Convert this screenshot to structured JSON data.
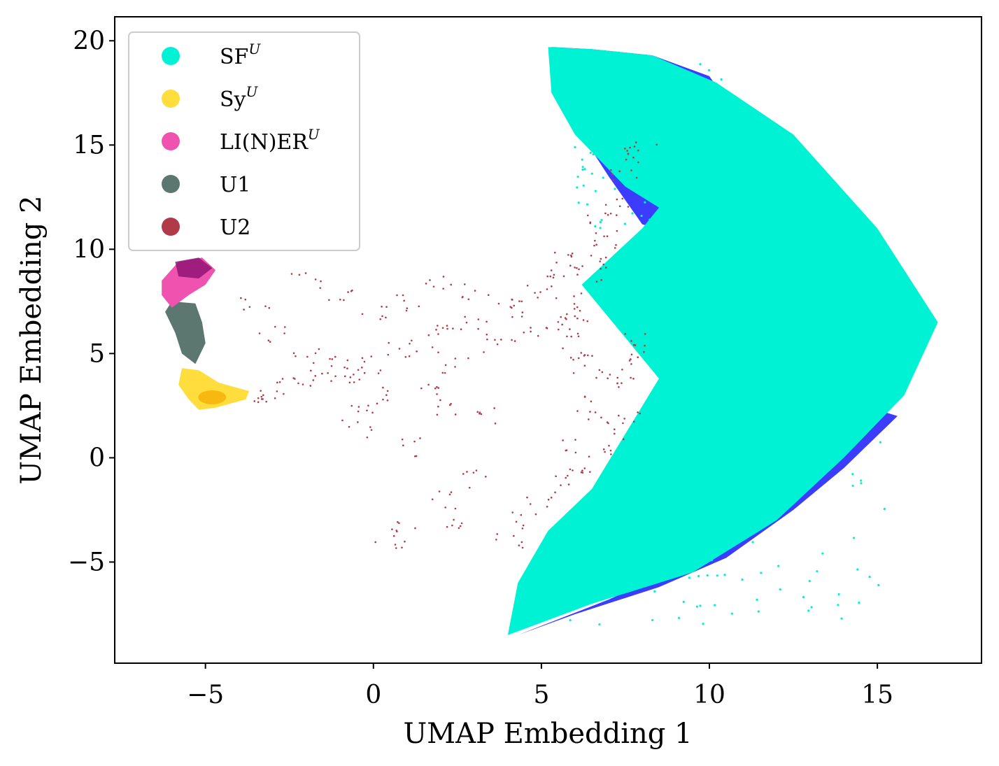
{
  "chart_data": {
    "type": "scatter",
    "xlabel": "UMAP Embedding 1",
    "ylabel": "UMAP Embedding 2",
    "xlim": [
      -7.7,
      18.1
    ],
    "ylim": [
      -9.85,
      21.15
    ],
    "xticks": [
      {
        "value": -5,
        "label": "−5"
      },
      {
        "value": 0,
        "label": "0"
      },
      {
        "value": 5,
        "label": "5"
      },
      {
        "value": 10,
        "label": "10"
      },
      {
        "value": 15,
        "label": "15"
      }
    ],
    "yticks": [
      {
        "value": -5,
        "label": "−5"
      },
      {
        "value": 0,
        "label": "0"
      },
      {
        "value": 5,
        "label": "5"
      },
      {
        "value": 10,
        "label": "10"
      },
      {
        "value": 15,
        "label": "15"
      },
      {
        "value": 20,
        "label": "20"
      }
    ],
    "legend_position": "top-left",
    "series": [
      {
        "name": "SF",
        "sup": "U",
        "color": "#00f2d4"
      },
      {
        "name": "Sy",
        "sup": "U",
        "color": "#ffdd3c"
      },
      {
        "name": "LI(N)ER",
        "sup": "U",
        "color": "#f052b0"
      },
      {
        "name": "U1",
        "sup": "",
        "color": "#5c7670"
      },
      {
        "name": "U2",
        "sup": "",
        "color": "#b03a48"
      }
    ],
    "overlay_color": "#1a1aff",
    "regions": {
      "SF_U": [
        [
          5.2,
          19.7
        ],
        [
          6.5,
          19.6
        ],
        [
          8.3,
          19.3
        ],
        [
          10.2,
          18.0
        ],
        [
          12.5,
          15.5
        ],
        [
          15.0,
          11.0
        ],
        [
          16.8,
          6.5
        ],
        [
          15.8,
          3.0
        ],
        [
          14.0,
          0.0
        ],
        [
          12.0,
          -3.0
        ],
        [
          9.5,
          -5.5
        ],
        [
          6.5,
          -7.0
        ],
        [
          4.0,
          -8.5
        ],
        [
          4.3,
          -6.0
        ],
        [
          5.2,
          -3.5
        ],
        [
          6.5,
          -1.5
        ],
        [
          8.5,
          3.8
        ],
        [
          6.2,
          8.3
        ],
        [
          8.0,
          11.0
        ],
        [
          8.5,
          12.0
        ],
        [
          7.5,
          13.0
        ],
        [
          6.0,
          15.5
        ],
        [
          5.3,
          17.5
        ]
      ],
      "blue_upper": [
        [
          5.3,
          19.7
        ],
        [
          6.5,
          19.6
        ],
        [
          8.3,
          19.3
        ],
        [
          10.0,
          18.3
        ],
        [
          11.0,
          16.0
        ],
        [
          10.0,
          13.0
        ],
        [
          8.9,
          10.8
        ],
        [
          8.0,
          11.2
        ],
        [
          7.0,
          13.5
        ],
        [
          6.0,
          16.0
        ],
        [
          5.6,
          17.5
        ]
      ],
      "blue_lower": [
        [
          15.6,
          2.0
        ],
        [
          14.0,
          -0.5
        ],
        [
          12.5,
          -2.5
        ],
        [
          10.5,
          -4.8
        ],
        [
          8.5,
          -6.2
        ],
        [
          6.0,
          -7.5
        ],
        [
          4.3,
          -8.5
        ],
        [
          7.0,
          -6.8
        ],
        [
          9.5,
          -5.0
        ],
        [
          11.5,
          -3.0
        ],
        [
          13.2,
          -0.3
        ],
        [
          14.8,
          2.4
        ]
      ],
      "U2_points": [
        [
          5.0,
          8.0
        ],
        [
          5.5,
          9.0
        ],
        [
          4.5,
          7.5
        ],
        [
          3.0,
          6.5
        ],
        [
          2.0,
          6.0
        ],
        [
          1.5,
          5.5
        ],
        [
          0.8,
          5.2
        ],
        [
          0.0,
          4.5
        ],
        [
          -0.5,
          4.2
        ],
        [
          -1.0,
          4.0
        ],
        [
          -1.8,
          3.8
        ],
        [
          -2.5,
          3.4
        ],
        [
          -3.0,
          3.0
        ],
        [
          -3.6,
          3.0
        ],
        [
          6.0,
          5.0
        ],
        [
          6.3,
          4.5
        ],
        [
          7.0,
          4.0
        ],
        [
          7.5,
          3.8
        ],
        [
          6.5,
          2.5
        ],
        [
          6.8,
          1.5
        ],
        [
          6.0,
          0.5
        ],
        [
          5.8,
          -1.0
        ],
        [
          5.0,
          -2.0
        ],
        [
          4.5,
          -3.0
        ],
        [
          3.0,
          -1.0
        ],
        [
          2.0,
          -2.0
        ],
        [
          1.0,
          -3.5
        ],
        [
          0.5,
          -3.9
        ],
        [
          -0.5,
          1.4
        ],
        [
          -1.0,
          4.5
        ],
        [
          -2.0,
          4.8
        ],
        [
          -3.0,
          6.0
        ],
        [
          -3.5,
          7.5
        ],
        [
          -2.0,
          8.5
        ],
        [
          -1.0,
          7.8
        ],
        [
          0.0,
          7.0
        ],
        [
          1.0,
          7.5
        ],
        [
          2.0,
          8.5
        ],
        [
          3.0,
          8.0
        ],
        [
          4.0,
          7.0
        ],
        [
          4.5,
          6.0
        ],
        [
          5.5,
          6.5
        ],
        [
          6.0,
          7.5
        ],
        [
          6.5,
          9.5
        ],
        [
          7.0,
          10.5
        ],
        [
          6.8,
          11.5
        ],
        [
          7.2,
          12.0
        ],
        [
          7.5,
          13.5
        ],
        [
          7.8,
          14.5
        ],
        [
          8.0,
          15.0
        ],
        [
          5.8,
          9.5
        ],
        [
          6.2,
          10.0
        ],
        [
          6.5,
          8.8
        ],
        [
          6.0,
          7.0
        ],
        [
          5.9,
          6.0
        ],
        [
          3.5,
          5.5
        ],
        [
          2.5,
          4.5
        ],
        [
          1.5,
          3.5
        ],
        [
          0.5,
          3.0
        ],
        [
          -0.3,
          2.5
        ],
        [
          7.8,
          5.5
        ],
        [
          8.0,
          4.8
        ],
        [
          7.5,
          2.0
        ],
        [
          7.0,
          0.5
        ],
        [
          6.2,
          -0.5
        ],
        [
          4.0,
          -4.0
        ],
        [
          2.5,
          -3.0
        ],
        [
          1.2,
          0.5
        ],
        [
          3.5,
          2.0
        ],
        [
          2.0,
          2.5
        ]
      ],
      "U1_blob": [
        [
          -6.0,
          7.5
        ],
        [
          -5.3,
          7.4
        ],
        [
          -5.1,
          6.5
        ],
        [
          -5.0,
          5.5
        ],
        [
          -5.3,
          4.5
        ],
        [
          -5.7,
          5.0
        ],
        [
          -5.9,
          6.0
        ],
        [
          -6.2,
          7.0
        ]
      ],
      "LINER_blob": [
        [
          -6.3,
          8.5
        ],
        [
          -5.8,
          9.4
        ],
        [
          -5.1,
          9.6
        ],
        [
          -4.7,
          9.0
        ],
        [
          -5.0,
          8.3
        ],
        [
          -5.5,
          7.8
        ],
        [
          -6.0,
          7.2
        ],
        [
          -6.3,
          7.8
        ]
      ],
      "LINER_dark": [
        [
          -5.9,
          9.4
        ],
        [
          -5.2,
          9.6
        ],
        [
          -4.8,
          9.1
        ],
        [
          -5.2,
          8.6
        ],
        [
          -5.8,
          8.7
        ]
      ],
      "Sy_blob": [
        [
          -5.7,
          4.3
        ],
        [
          -5.2,
          4.2
        ],
        [
          -4.6,
          3.6
        ],
        [
          -3.7,
          3.2
        ],
        [
          -3.8,
          2.8
        ],
        [
          -4.7,
          2.4
        ],
        [
          -5.2,
          2.3
        ],
        [
          -5.5,
          2.8
        ],
        [
          -5.8,
          3.5
        ]
      ]
    }
  }
}
